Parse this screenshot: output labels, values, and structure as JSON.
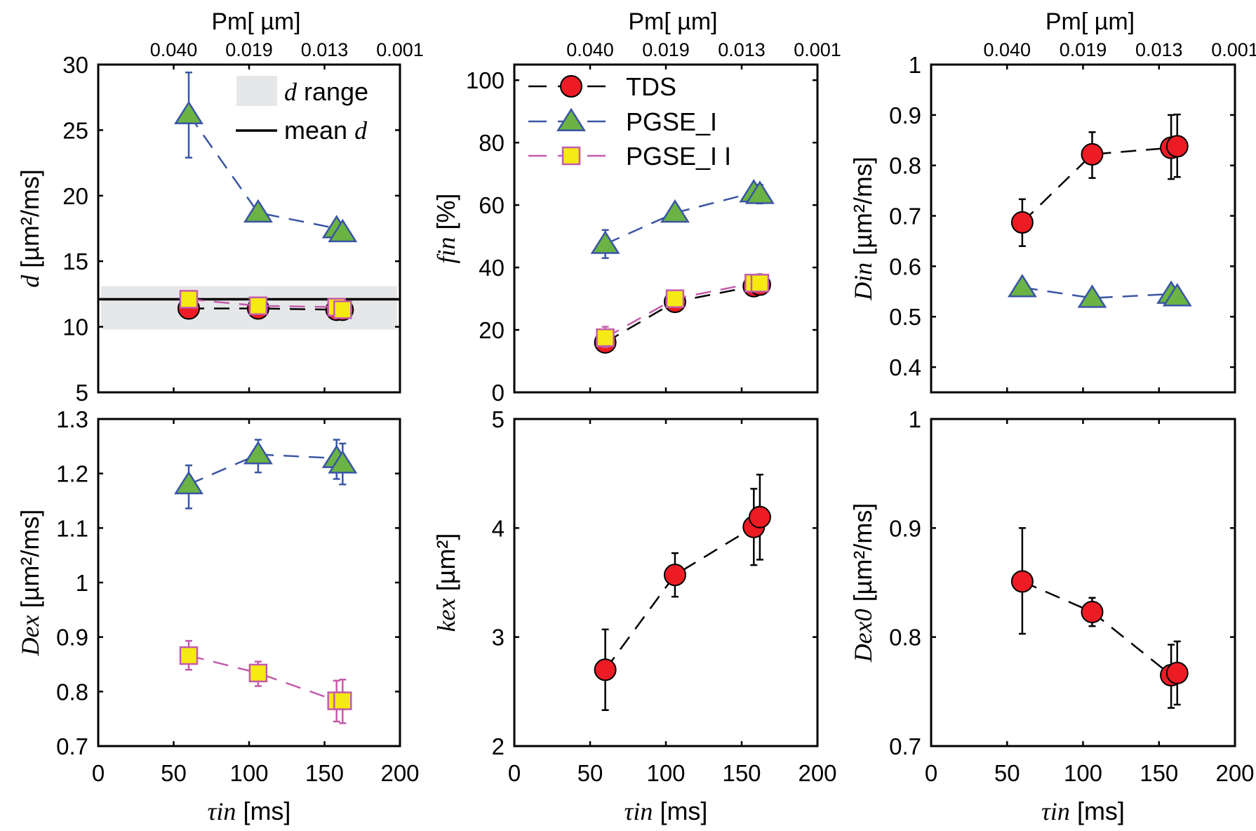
{
  "figure": {
    "top_axis_title": "Pm[ µm]",
    "top_axis_ticks": [
      "0.040",
      "0.019",
      "0.013",
      "0.001"
    ],
    "x_axis_label_var": "τin",
    "x_axis_label_unit": " [ms]"
  },
  "colors": {
    "TDS_line": "#000000",
    "TDS_fill": "#ed1c24",
    "PGSE_I_line": "#3a55a4",
    "PGSE_I_fill": "#6ab344",
    "PGSE_II_line": "#c35bab",
    "PGSE_II_fill": "#f5ea14",
    "d_range_fill": "#e6e7e8",
    "mean_d_line": "#000000"
  },
  "legends": {
    "panel1": [
      {
        "label_var": "d",
        "label_text": " range",
        "type": "patch"
      },
      {
        "label_text": "mean ",
        "label_var": "d",
        "type": "line"
      }
    ],
    "panel2": [
      {
        "label": "TDS",
        "series": "TDS"
      },
      {
        "label": "PGSE_I",
        "series": "PGSE_I"
      },
      {
        "label": "PGSE_I I",
        "series": "PGSE_II"
      }
    ]
  },
  "chart_data": [
    {
      "id": "d",
      "type": "scatter",
      "title": "",
      "ylabel_var": "d",
      "ylabel_unit": " [µm²/ms]",
      "xlabel": "τin [ms]",
      "xlim": [
        0,
        200
      ],
      "ylim": [
        5,
        30
      ],
      "yticks": [
        5,
        10,
        15,
        20,
        25,
        30
      ],
      "xticks": [
        0,
        50,
        100,
        150,
        200
      ],
      "show_xticklabels": false,
      "show_top_axis": true,
      "legend_placement": "top-right",
      "band": {
        "name": "d range",
        "y0": 9.8,
        "y1": 13.1
      },
      "hline": {
        "name": "mean d",
        "y": 12.1
      },
      "series": [
        {
          "name": "TDS",
          "marker": "circle",
          "x": [
            60,
            106,
            158,
            162
          ],
          "y": [
            11.4,
            11.4,
            11.3,
            11.3
          ],
          "err_lo": [
            10.7,
            11.1,
            11.0,
            11.0
          ],
          "err_hi": [
            12.0,
            11.7,
            11.6,
            11.6
          ]
        },
        {
          "name": "PGSE_I",
          "marker": "triangle",
          "x": [
            60,
            106,
            158,
            162
          ],
          "y": [
            26.2,
            18.7,
            17.5,
            17.2
          ],
          "err_lo": [
            22.9,
            18.4,
            17.2,
            17.0
          ],
          "err_hi": [
            29.4,
            19.0,
            17.8,
            17.5
          ]
        },
        {
          "name": "PGSE_II",
          "marker": "square",
          "x": [
            60,
            106,
            158,
            162
          ],
          "y": [
            12.1,
            11.6,
            11.5,
            11.3
          ],
          "err_lo": [
            11.8,
            11.3,
            11.2,
            11.0
          ],
          "err_hi": [
            12.4,
            11.9,
            11.8,
            11.6
          ]
        }
      ]
    },
    {
      "id": "fin",
      "type": "scatter",
      "ylabel_var": "fin",
      "ylabel_unit": " [%]",
      "xlabel": "τin [ms]",
      "xlim": [
        0,
        200
      ],
      "ylim": [
        0,
        105
      ],
      "yticks": [
        0,
        20,
        40,
        60,
        80,
        100
      ],
      "xticks": [
        0,
        50,
        100,
        150,
        200
      ],
      "show_xticklabels": false,
      "show_top_axis": true,
      "legend_placement": "top-left",
      "series": [
        {
          "name": "TDS",
          "marker": "circle",
          "x": [
            60,
            106,
            158,
            162
          ],
          "y": [
            16,
            29,
            34,
            34.5
          ],
          "err_lo": [
            13,
            28,
            33,
            33.5
          ],
          "err_hi": [
            19,
            30,
            35,
            35.5
          ]
        },
        {
          "name": "PGSE_I",
          "marker": "triangle",
          "x": [
            60,
            106,
            158,
            162
          ],
          "y": [
            47.5,
            57.5,
            64,
            63.5
          ],
          "err_lo": [
            43,
            56.5,
            62.5,
            60.5
          ],
          "err_hi": [
            52,
            58.5,
            65.5,
            66.5
          ]
        },
        {
          "name": "PGSE_II",
          "marker": "square",
          "x": [
            60,
            106,
            158,
            162
          ],
          "y": [
            17.5,
            30,
            35,
            35
          ],
          "err_lo": [
            14.5,
            29,
            34,
            34
          ],
          "err_hi": [
            21,
            31,
            36,
            36
          ]
        }
      ]
    },
    {
      "id": "Din",
      "type": "scatter",
      "ylabel_var": "Din",
      "ylabel_unit": " [µm²/ms]",
      "xlabel": "τin [ms]",
      "xlim": [
        0,
        200
      ],
      "ylim": [
        0.35,
        1
      ],
      "yticks": [
        0.4,
        0.5,
        0.6,
        0.7,
        0.8,
        0.9,
        1
      ],
      "ytick_labels": [
        "0.4",
        "0.5",
        "0.6",
        "0.7",
        "0.8",
        "0.9",
        "1"
      ],
      "xticks": [
        0,
        50,
        100,
        150,
        200
      ],
      "show_xticklabels": false,
      "show_top_axis": true,
      "series": [
        {
          "name": "TDS",
          "marker": "circle",
          "x": [
            60,
            106,
            158,
            162
          ],
          "y": [
            0.687,
            0.822,
            0.835,
            0.838
          ],
          "err_lo": [
            0.64,
            0.775,
            0.773,
            0.777
          ],
          "err_hi": [
            0.733,
            0.866,
            0.9,
            0.901
          ]
        },
        {
          "name": "PGSE_I",
          "marker": "triangle",
          "x": [
            60,
            106,
            158,
            162
          ],
          "y": [
            0.558,
            0.537,
            0.545,
            0.54
          ],
          "err_lo": [
            0.553,
            0.532,
            0.54,
            0.535
          ],
          "err_hi": [
            0.563,
            0.542,
            0.55,
            0.545
          ]
        }
      ]
    },
    {
      "id": "Dex",
      "type": "scatter",
      "ylabel_var": "Dex",
      "ylabel_unit": "  [µm²/ms]",
      "xlabel": "τin [ms]",
      "xlim": [
        0,
        200
      ],
      "ylim": [
        0.7,
        1.3
      ],
      "yticks": [
        0.7,
        0.8,
        0.9,
        1,
        1.1,
        1.2,
        1.3
      ],
      "ytick_labels": [
        "0.7",
        "0.8",
        "0.9",
        "1",
        "1.1",
        "1.2",
        "1.3"
      ],
      "xticks": [
        0,
        50,
        100,
        150,
        200
      ],
      "show_xticklabels": true,
      "show_top_axis": false,
      "series": [
        {
          "name": "PGSE_I",
          "marker": "triangle",
          "x": [
            60,
            106,
            158,
            162
          ],
          "y": [
            1.18,
            1.235,
            1.228,
            1.218
          ],
          "err_lo": [
            1.136,
            1.202,
            1.19,
            1.18
          ],
          "err_hi": [
            1.215,
            1.262,
            1.262,
            1.255
          ]
        },
        {
          "name": "PGSE_II",
          "marker": "square",
          "x": [
            60,
            106,
            158,
            162
          ],
          "y": [
            0.866,
            0.834,
            0.783,
            0.783
          ],
          "err_lo": [
            0.84,
            0.81,
            0.745,
            0.742
          ],
          "err_hi": [
            0.893,
            0.855,
            0.82,
            0.822
          ]
        }
      ]
    },
    {
      "id": "kex",
      "type": "scatter",
      "ylabel_var": "kex",
      "ylabel_unit": "  [µm²]",
      "xlabel": "τin [ms]",
      "xlim": [
        0,
        200
      ],
      "ylim": [
        2,
        5
      ],
      "yticks": [
        2,
        3,
        4,
        5
      ],
      "xticks": [
        0,
        50,
        100,
        150,
        200
      ],
      "show_xticklabels": true,
      "show_top_axis": false,
      "series": [
        {
          "name": "TDS",
          "marker": "circle",
          "x": [
            60,
            106,
            158,
            162
          ],
          "y": [
            2.7,
            3.57,
            4.01,
            4.1
          ],
          "err_lo": [
            2.33,
            3.37,
            3.66,
            3.71
          ],
          "err_hi": [
            3.07,
            3.77,
            4.36,
            4.49
          ]
        }
      ]
    },
    {
      "id": "Dex0",
      "type": "scatter",
      "ylabel_var": "Dex0",
      "ylabel_unit": " [µm²/ms]",
      "xlabel": "τin [ms]",
      "xlim": [
        0,
        200
      ],
      "ylim": [
        0.7,
        1
      ],
      "yticks": [
        0.7,
        0.8,
        0.9,
        1
      ],
      "ytick_labels": [
        "0.7",
        "0.8",
        "0.9",
        "1"
      ],
      "xticks": [
        0,
        50,
        100,
        150,
        200
      ],
      "show_xticklabels": true,
      "show_top_axis": false,
      "series": [
        {
          "name": "TDS",
          "marker": "circle",
          "x": [
            60,
            106,
            158,
            162
          ],
          "y": [
            0.851,
            0.823,
            0.765,
            0.767
          ],
          "err_lo": [
            0.803,
            0.81,
            0.735,
            0.738
          ],
          "err_hi": [
            0.9,
            0.836,
            0.793,
            0.796
          ]
        }
      ]
    }
  ]
}
